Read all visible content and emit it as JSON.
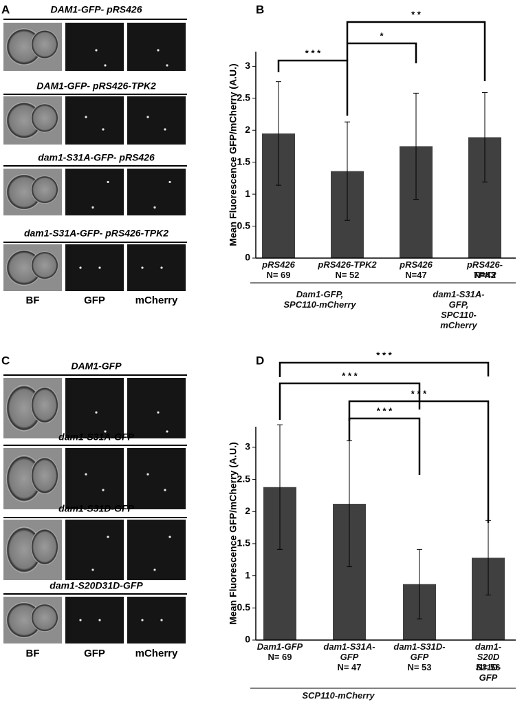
{
  "panels": [
    {
      "letter": "A",
      "rows": [
        "DAM1-GFP- pRS426",
        "DAM1-GFP- pRS426-TPK2",
        "dam1-S31A-GFP- pRS426",
        "dam1-S31A-GFP- pRS426-TPK2"
      ],
      "columns": [
        "BF",
        "GFP",
        "mCherry"
      ]
    },
    {
      "letter": "C",
      "rows": [
        "DAM1-GFP",
        "dam1-S31A-GFP",
        "dam1-S31D-GFP",
        "dam1-S20D31D-GFP"
      ],
      "columns": [
        "BF",
        "GFP",
        "mCherry"
      ]
    }
  ],
  "chart_data": [
    {
      "type": "bar",
      "panel": "B",
      "y_label": "Mean Fluorescence GFP/mCherry (A.U.)",
      "categories": [
        "pRS426",
        "pRS426-TPK2",
        "pRS426",
        "pRS426-TPK2"
      ],
      "n_labels": [
        "N= 69",
        "N= 52",
        "N=47",
        "N=43"
      ],
      "groups": [
        "Dam1-GFP,\nSPC110-mCherry",
        "dam1-S31A-GFP,\nSPC110-mCherry"
      ],
      "values": [
        1.95,
        1.36,
        1.75,
        1.89
      ],
      "errors": [
        0.81,
        0.77,
        0.83,
        0.7
      ],
      "color": "#404040",
      "ylim": [
        0,
        3.23
      ],
      "yticks": [
        0,
        0.5,
        1,
        1.5,
        2,
        2.5,
        3
      ],
      "annotations": [
        "* * *",
        "*",
        "* *"
      ]
    },
    {
      "type": "bar",
      "panel": "D",
      "y_label": "Mean Fluorescence GFP/mCherry (A.U.)",
      "categories": [
        "Dam1-GFP",
        "dam1-S31A-\nGFP",
        "dam1-S31D-\nGFP",
        "dam1-S20D\nS31D-GFP"
      ],
      "n_labels": [
        "N= 69",
        "N= 47",
        "N= 53",
        "N= 56"
      ],
      "groups": [
        "SCP110-mCherry"
      ],
      "values": [
        2.38,
        2.12,
        0.87,
        1.28
      ],
      "errors": [
        0.97,
        0.98,
        0.54,
        0.58
      ],
      "color": "#404040",
      "ylim": [
        0,
        3.32
      ],
      "yticks": [
        0,
        0.5,
        1,
        1.5,
        2,
        2.5,
        3
      ],
      "annotations": [
        "* * *",
        "* * *",
        "* * *",
        "* * *"
      ]
    }
  ]
}
